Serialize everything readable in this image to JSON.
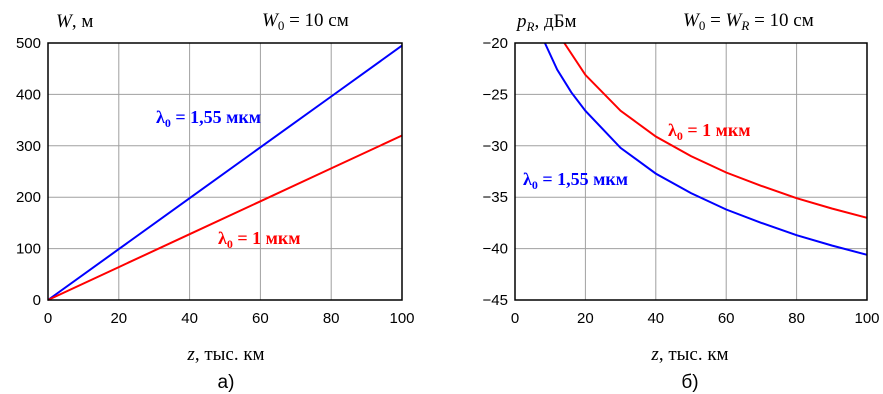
{
  "chart_data": [
    {
      "type": "line",
      "panel_label": "а)",
      "ylabel": {
        "main": "W",
        "unit": ", м"
      },
      "xlabel": {
        "main": "z",
        "unit": ", тыс. км"
      },
      "title_note": {
        "main": "W",
        "sub": "0",
        "rest": " = 10 см"
      },
      "xlim": [
        0,
        100
      ],
      "ylim": [
        0,
        500
      ],
      "x_ticks": [
        0,
        20,
        40,
        60,
        80,
        100
      ],
      "y_ticks": [
        0,
        100,
        200,
        300,
        400,
        500
      ],
      "grid": true,
      "series": [
        {
          "label_main": "λ",
          "label_sub": "0",
          "label_rest": " = 1,55 мкм",
          "color": "#0000ff",
          "x": [
            0,
            20,
            40,
            60,
            80,
            100
          ],
          "y": [
            0,
            99,
            198,
            297,
            396,
            495
          ]
        },
        {
          "label_main": "λ",
          "label_sub": "0",
          "label_rest": " = 1 мкм",
          "color": "#ff0000",
          "x": [
            0,
            20,
            40,
            60,
            80,
            100
          ],
          "y": [
            0,
            64,
            128,
            192,
            256,
            320
          ]
        }
      ]
    },
    {
      "type": "line",
      "panel_label": "б)",
      "ylabel": {
        "main": "p",
        "sub": "R",
        "unit": ", дБм"
      },
      "xlabel": {
        "main": "z",
        "unit": ", тыс. км"
      },
      "title_note": {
        "main": "W",
        "sub": "0",
        "mid": " = W",
        "sub2": "R",
        "rest": " = 10 см"
      },
      "xlim": [
        0,
        100
      ],
      "ylim": [
        -45,
        -20
      ],
      "x_ticks": [
        0,
        20,
        40,
        60,
        80,
        100
      ],
      "y_ticks": [
        -20,
        -25,
        -30,
        -35,
        -40,
        -45
      ],
      "grid": true,
      "series": [
        {
          "label_main": "λ",
          "label_sub": "0",
          "label_rest": " = 1 мкм",
          "color": "#ff0000",
          "x": [
            14,
            20,
            30,
            40,
            50,
            60,
            70,
            80,
            90,
            100
          ],
          "y": [
            -20.0,
            -23.1,
            -26.6,
            -29.1,
            -31.0,
            -32.6,
            -33.9,
            -35.1,
            -36.1,
            -37.0
          ]
        },
        {
          "label_main": "λ",
          "label_sub": "0",
          "label_rest": " = 1,55 мкм",
          "color": "#0000ff",
          "x": [
            8.5,
            12,
            16,
            20,
            30,
            40,
            50,
            60,
            70,
            80,
            90,
            100
          ],
          "y": [
            -20.0,
            -22.6,
            -24.8,
            -26.6,
            -30.2,
            -32.7,
            -34.6,
            -36.2,
            -37.5,
            -38.7,
            -39.7,
            -40.6
          ]
        }
      ]
    }
  ]
}
